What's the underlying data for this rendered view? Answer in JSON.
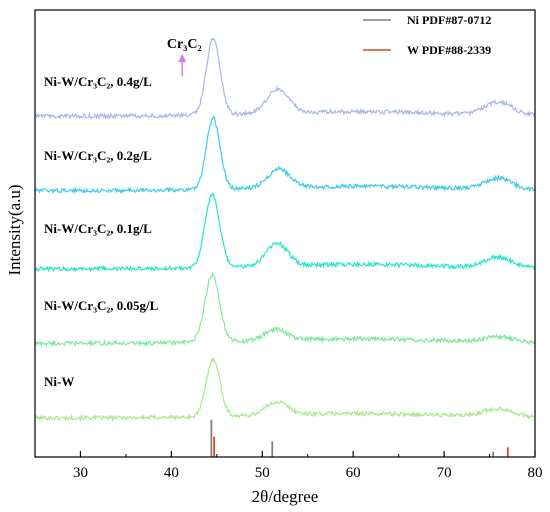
{
  "chart_data": {
    "type": "line",
    "xlabel": "2θ/degree",
    "ylabel": "Intensity(a.u)",
    "xlim": [
      25,
      80
    ],
    "xticks": [
      "30",
      "40",
      "50",
      "60",
      "70",
      "80"
    ],
    "grid": false,
    "legend_position": "top-right",
    "legend": [
      {
        "name": "Ni PDF#87-0712",
        "color": "#808080"
      },
      {
        "name": "W PDF#88-2339",
        "color": "#c8501e"
      }
    ],
    "series": [
      {
        "name": "Ni-W",
        "color": "#a6ea8c",
        "baseline": 0.45,
        "peaks": [
          [
            44.6,
            1.55,
            0.75
          ],
          [
            51.6,
            0.35,
            1.2
          ],
          [
            76.0,
            0.22,
            1.6
          ]
        ]
      },
      {
        "name": "Ni-W/Cr₃C₂,  0.05g/L",
        "color": "#7ee89a",
        "baseline": 2.45,
        "peaks": [
          [
            44.5,
            1.8,
            0.8
          ],
          [
            51.5,
            0.3,
            1.2
          ],
          [
            76.0,
            0.15,
            1.6
          ]
        ]
      },
      {
        "name": "Ni-W/Cr₃C₂,  0.1g/L",
        "color": "#22e6c8",
        "baseline": 4.45,
        "peaks": [
          [
            44.5,
            1.95,
            0.8
          ],
          [
            51.6,
            0.6,
            1.2
          ],
          [
            76.0,
            0.28,
            1.5
          ]
        ]
      },
      {
        "name": "Ni-W/Cr₃C₂,  0.2g/L",
        "color": "#3dcbe8",
        "baseline": 6.55,
        "peaks": [
          [
            44.6,
            1.9,
            0.75
          ],
          [
            51.8,
            0.5,
            1.2
          ],
          [
            76.0,
            0.3,
            1.5
          ]
        ]
      },
      {
        "name": "Ni-W/Cr₃C₂,  0.4g/L",
        "color": "#aab5ee",
        "baseline": 8.55,
        "peaks": [
          [
            44.6,
            2.05,
            0.75
          ],
          [
            51.7,
            0.65,
            1.2
          ],
          [
            76.0,
            0.35,
            1.5
          ]
        ]
      }
    ],
    "reference_lines": [
      {
        "source": "Ni PDF#87-0712",
        "color": "#808080",
        "lines": [
          [
            44.4,
            1.0
          ],
          [
            51.1,
            0.42
          ],
          [
            75.4,
            0.14
          ]
        ]
      },
      {
        "source": "W PDF#88-2339",
        "color": "#c8501e",
        "lines": [
          [
            44.6,
            0.55
          ],
          [
            76.9,
            0.26
          ]
        ]
      }
    ],
    "annotation": {
      "label": "Cr₃C₂",
      "x": 41.2,
      "series": "Ni-W/Cr₃C₂,  0.4g/L",
      "arrow_color": "#d67ce6"
    }
  }
}
